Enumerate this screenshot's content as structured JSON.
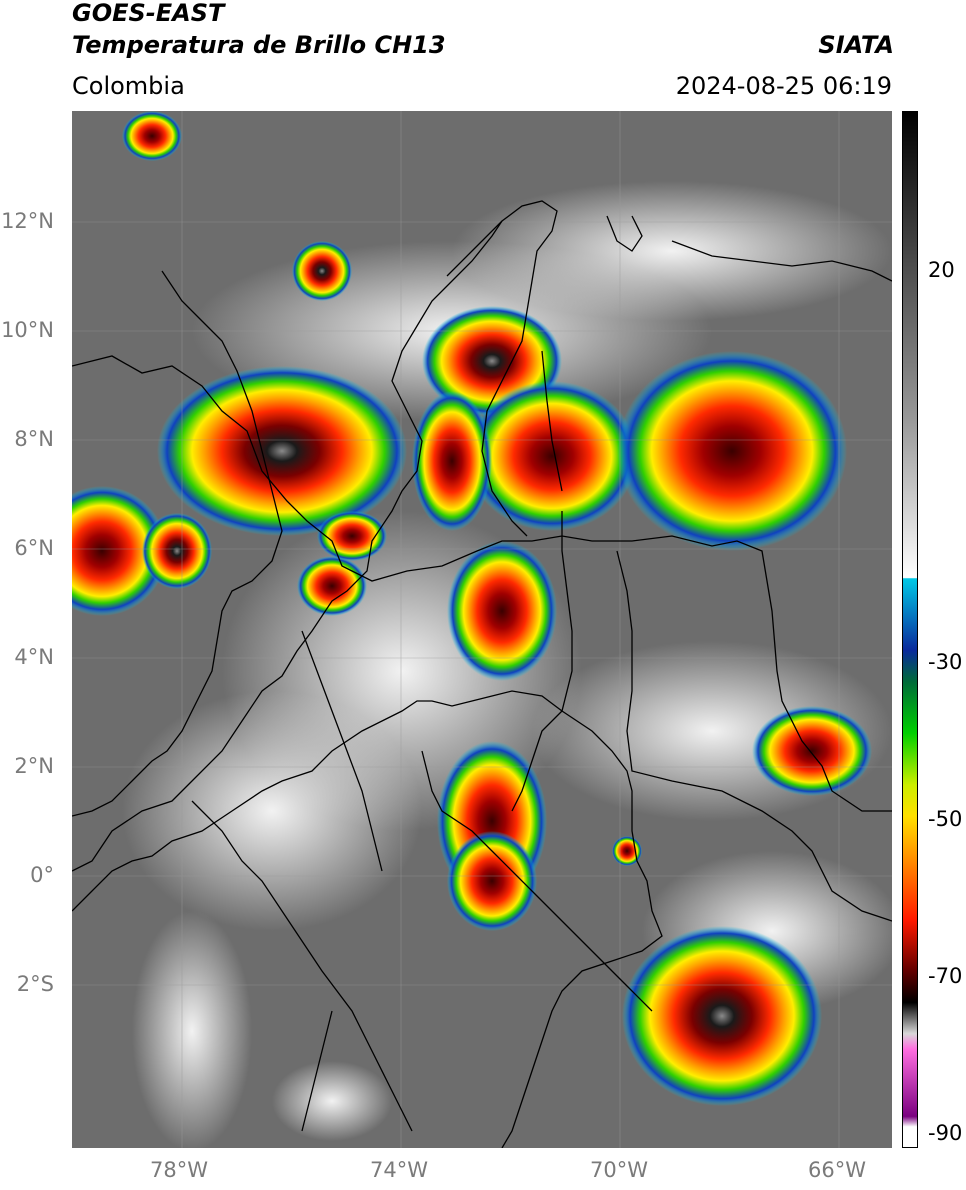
{
  "header": {
    "satellite": "GOES-EAST",
    "product": "Temperatura de Brillo CH13",
    "region": "Colombia",
    "agency": "SIATA",
    "datetime": "2024-08-25 06:19"
  },
  "map": {
    "lat_ticks": [
      "12°N",
      "10°N",
      "8°N",
      "6°N",
      "4°N",
      "2°N",
      "0°",
      "2°S"
    ],
    "lon_ticks": [
      "78°W",
      "74°W",
      "70°W",
      "66°W"
    ],
    "extent": {
      "lon_min": -80,
      "lon_max": -65,
      "lat_min": -5.2,
      "lat_max": 14
    }
  },
  "colorbar": {
    "ticks": [
      "20",
      "-30",
      "-50",
      "-70",
      "-90"
    ],
    "colors": [
      "#000000",
      "#9a9a9a",
      "#ffffff",
      "#00c8e6",
      "#0a2a9c",
      "#00d000",
      "#ffe000",
      "#ff2a00",
      "#600000",
      "#000000",
      "#f0f0f0",
      "#ff6ee0",
      "#7a0080",
      "#ffffff"
    ]
  }
}
